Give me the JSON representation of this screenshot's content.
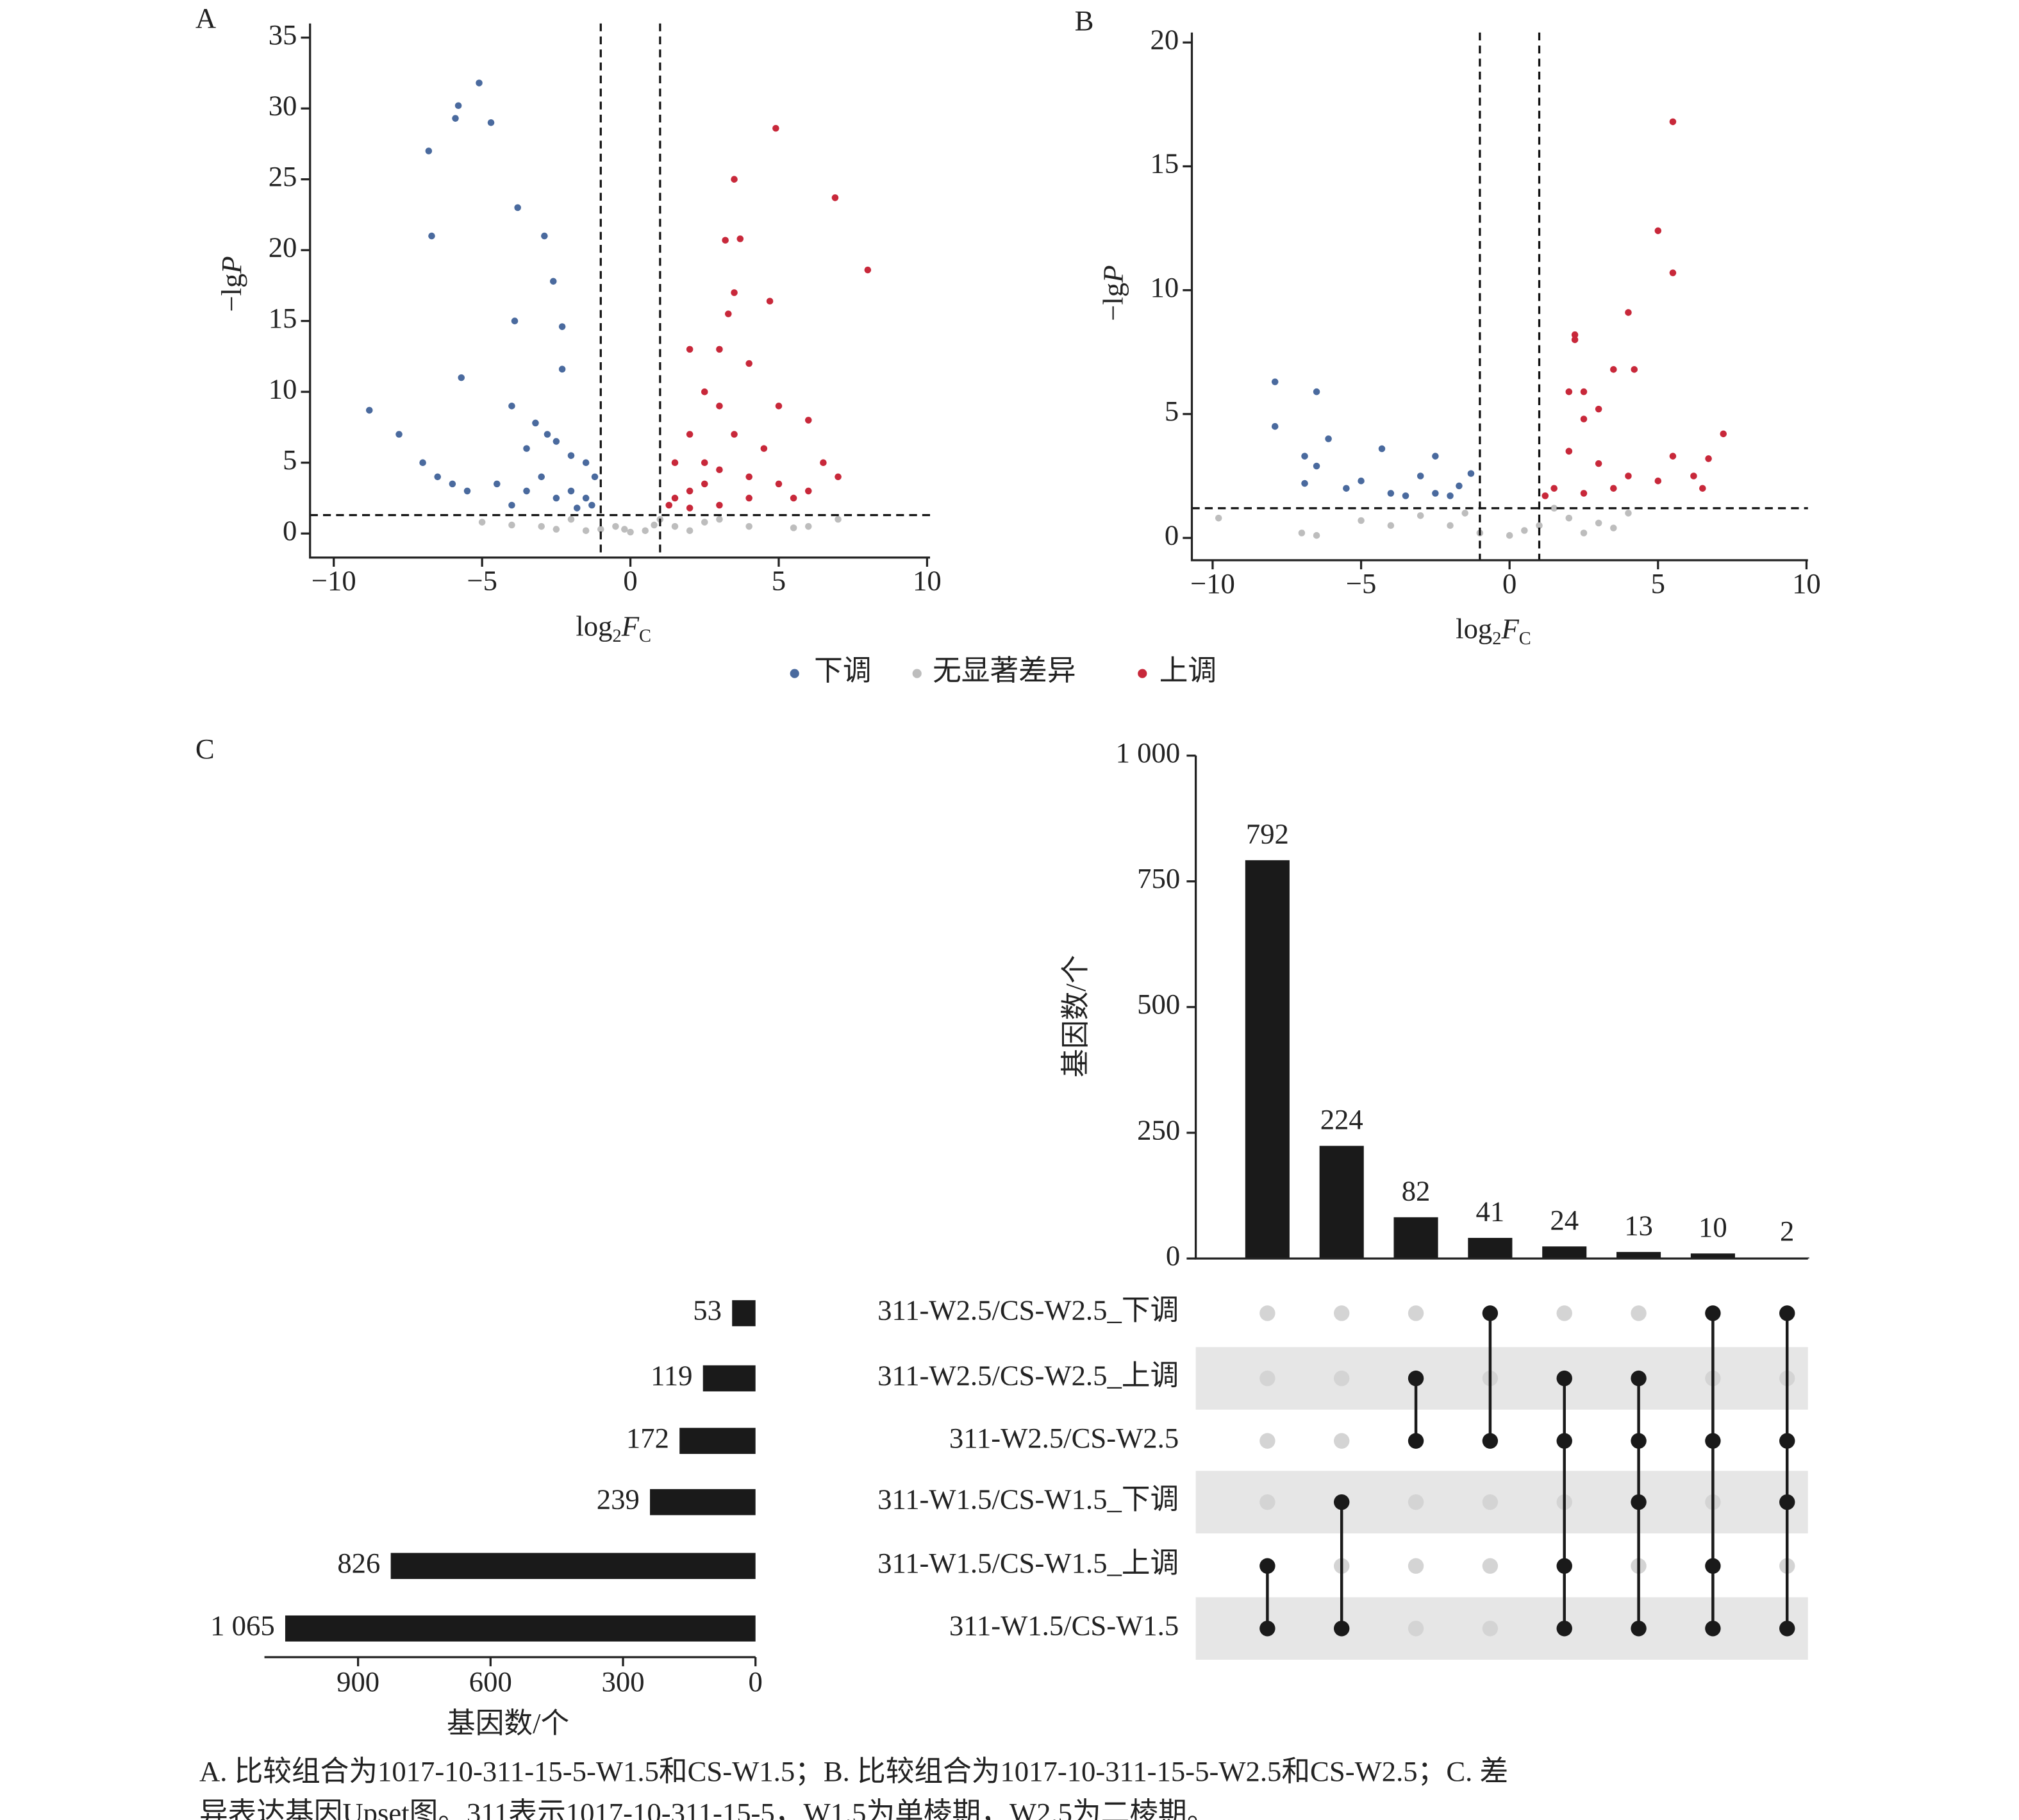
{
  "chart_data": [
    {
      "type": "volcano",
      "label": "A",
      "xlabel": [
        "log",
        "2",
        "F",
        "C"
      ],
      "ylabel": [
        "−lg",
        "P"
      ],
      "xlim": [
        -10.8,
        10.1
      ],
      "ylim": [
        -1.7,
        36
      ],
      "xticks": [
        {
          "value": -10,
          "label": "−10"
        },
        {
          "value": -5,
          "label": "−5"
        },
        0,
        5,
        10
      ],
      "yticks": [
        0,
        5,
        10,
        15,
        20,
        25,
        30,
        35
      ],
      "vlines": [
        -1,
        1
      ],
      "hline": 1.3,
      "groups": [
        {
          "x": [
            -8.8,
            -7.8,
            -7,
            -6.5,
            -6,
            -5.5,
            -6.8,
            -6.7,
            -5.8,
            -5.9,
            -5.1,
            -4.7,
            -3.8,
            -2.9,
            -2.6,
            -2.3,
            -3.9,
            -2.3,
            -5.7,
            -4,
            -3.2,
            -2.8,
            -3.5,
            -2.5,
            -2,
            -1.5,
            -1.2,
            -2,
            -1.5,
            -3,
            -4.5,
            -1.3,
            -2.5,
            -1.8,
            -4,
            -3.5
          ],
          "y": [
            8.7,
            7,
            5,
            4,
            3.5,
            3,
            27,
            21,
            30.2,
            29.3,
            31.8,
            29,
            23,
            21,
            17.8,
            14.6,
            15,
            11.6,
            11,
            9,
            7.8,
            7,
            6,
            6.5,
            5.5,
            5,
            4,
            3,
            2.5,
            4,
            3.5,
            2,
            2.5,
            1.8,
            2,
            3
          ]
        },
        {
          "x": [
            -3,
            -1,
            0,
            0.5,
            1.5,
            2.5,
            4,
            5.5,
            -2,
            -4,
            -0.5,
            0.8,
            3,
            -1.5,
            1,
            -2.5,
            6,
            -5,
            2,
            -0.2,
            7
          ],
          "y": [
            0.5,
            0.3,
            0.1,
            0.2,
            0.5,
            0.8,
            0.5,
            0.4,
            1,
            0.6,
            0.5,
            0.6,
            1,
            0.2,
            1,
            0.3,
            0.5,
            0.8,
            0.2,
            0.3,
            1
          ]
        },
        {
          "x": [
            4.9,
            3.5,
            6.9,
            3.2,
            3.7,
            8,
            3.5,
            4.7,
            3.3,
            2,
            3,
            4,
            2.5,
            3,
            5,
            6,
            2,
            3.5,
            4.5,
            1.5,
            2.5,
            3,
            6.5,
            7,
            5,
            2,
            1.5,
            3,
            4,
            6,
            1.3,
            2,
            5.5,
            4,
            2.5
          ],
          "y": [
            28.6,
            25,
            23.7,
            20.7,
            20.8,
            18.6,
            17,
            16.4,
            15.5,
            13,
            13,
            12,
            10,
            9,
            9,
            8,
            7,
            7,
            6,
            5,
            5,
            4.5,
            5,
            4,
            3.5,
            3,
            2.5,
            2,
            2.5,
            3,
            2,
            1.8,
            2.5,
            4,
            3.5
          ]
        }
      ]
    },
    {
      "type": "volcano",
      "label": "B",
      "xlabel": [
        "log",
        "2",
        "F",
        "C"
      ],
      "ylabel": [
        "−lg",
        "P"
      ],
      "xlim": [
        -10.7,
        10.05
      ],
      "ylim": [
        -0.9,
        20.4
      ],
      "xticks": [
        {
          "value": -10,
          "label": "−10"
        },
        {
          "value": -5,
          "label": "−5"
        },
        0,
        5,
        10
      ],
      "yticks": [
        0,
        5,
        10,
        15,
        20
      ],
      "vlines": [
        -1,
        1
      ],
      "hline": 1.2,
      "groups": [
        {
          "x": [
            -7.9,
            -6.5,
            -7.9,
            -6.1,
            -6.9,
            -6.5,
            -6.9,
            -5,
            -4.3,
            -2.5,
            -3,
            -4,
            -2,
            -2.5,
            -3.5,
            -1.3,
            -5.5,
            -1.7
          ],
          "y": [
            6.3,
            5.9,
            4.5,
            4,
            3.3,
            2.9,
            2.2,
            2.3,
            3.6,
            3.3,
            2.5,
            1.8,
            1.7,
            1.8,
            1.7,
            2.6,
            2,
            2.1
          ]
        },
        {
          "x": [
            -9.8,
            -6.5,
            -7,
            -4,
            -2,
            -1,
            0,
            1,
            2,
            3,
            4,
            -3,
            -5,
            1.5,
            -1.5,
            0.5,
            2.5,
            3.5
          ],
          "y": [
            0.8,
            0.1,
            0.2,
            0.5,
            0.5,
            0.2,
            0.1,
            0.5,
            0.8,
            0.6,
            1,
            0.9,
            0.7,
            1.2,
            1,
            0.3,
            0.2,
            0.4
          ]
        },
        {
          "x": [
            5.5,
            5,
            5.5,
            4,
            2.2,
            2.2,
            3.5,
            4.2,
            2,
            2.5,
            3,
            2.5,
            7.2,
            6.7,
            5.5,
            6.2,
            2,
            3,
            4,
            1.5,
            2.5,
            3.5,
            1.2,
            5,
            6.5
          ],
          "y": [
            16.8,
            12.4,
            10.7,
            9.1,
            8.2,
            8,
            6.8,
            6.8,
            5.9,
            5.9,
            5.2,
            4.8,
            4.2,
            3.2,
            3.3,
            2.5,
            3.5,
            3,
            2.5,
            2,
            1.8,
            2,
            1.7,
            2.3,
            2
          ]
        }
      ]
    },
    {
      "type": "upset",
      "label": "C",
      "ylabel": "基因数/个",
      "ylim": [
        0,
        1000
      ],
      "yticks": [
        0,
        250,
        500,
        750,
        {
          "value": 1000,
          "label": "1 000"
        }
      ],
      "xlabel": "基因数/个",
      "xlim": [
        1112,
        0
      ],
      "xticks": [
        900,
        600,
        300,
        0
      ],
      "sets": {
        "names": [
          "311-W2.5/CS-W2.5_下调",
          "311-W2.5/CS-W2.5_上调",
          "311-W2.5/CS-W2.5",
          "311-W1.5/CS-W1.5_下调",
          "311-W1.5/CS-W1.5_上调",
          "311-W1.5/CS-W1.5"
        ],
        "values": [
          53,
          119,
          172,
          239,
          826,
          1065
        ],
        "value_labels": [
          "53",
          "119",
          "172",
          "239",
          "826",
          "1 065"
        ]
      },
      "intersections": {
        "values": [
          792,
          224,
          82,
          41,
          24,
          13,
          10,
          2
        ],
        "members": [
          [
            4,
            5
          ],
          [
            3,
            5
          ],
          [
            1,
            2
          ],
          [
            0,
            2
          ],
          [
            1,
            2,
            4,
            5
          ],
          [
            1,
            2,
            3,
            5
          ],
          [
            0,
            2,
            4,
            5
          ],
          [
            0,
            2,
            3,
            5
          ]
        ]
      }
    }
  ],
  "legend": [
    {
      "name": "下调",
      "color": "#4a6a9e"
    },
    {
      "name": "无显著差异",
      "color": "#bdbdbd"
    },
    {
      "name": "上调",
      "color": "#c8283a"
    }
  ],
  "caption": [
    "A. 比较组合为1017-10-311-15-5-W1.5和CS-W1.5；B. 比较组合为1017-10-311-15-5-W2.5和CS-W2.5；C. 差",
    "异表达基因Upset图。311表示1017-10-311-15-5，W1.5为单棱期，W2.5为二棱期。"
  ]
}
